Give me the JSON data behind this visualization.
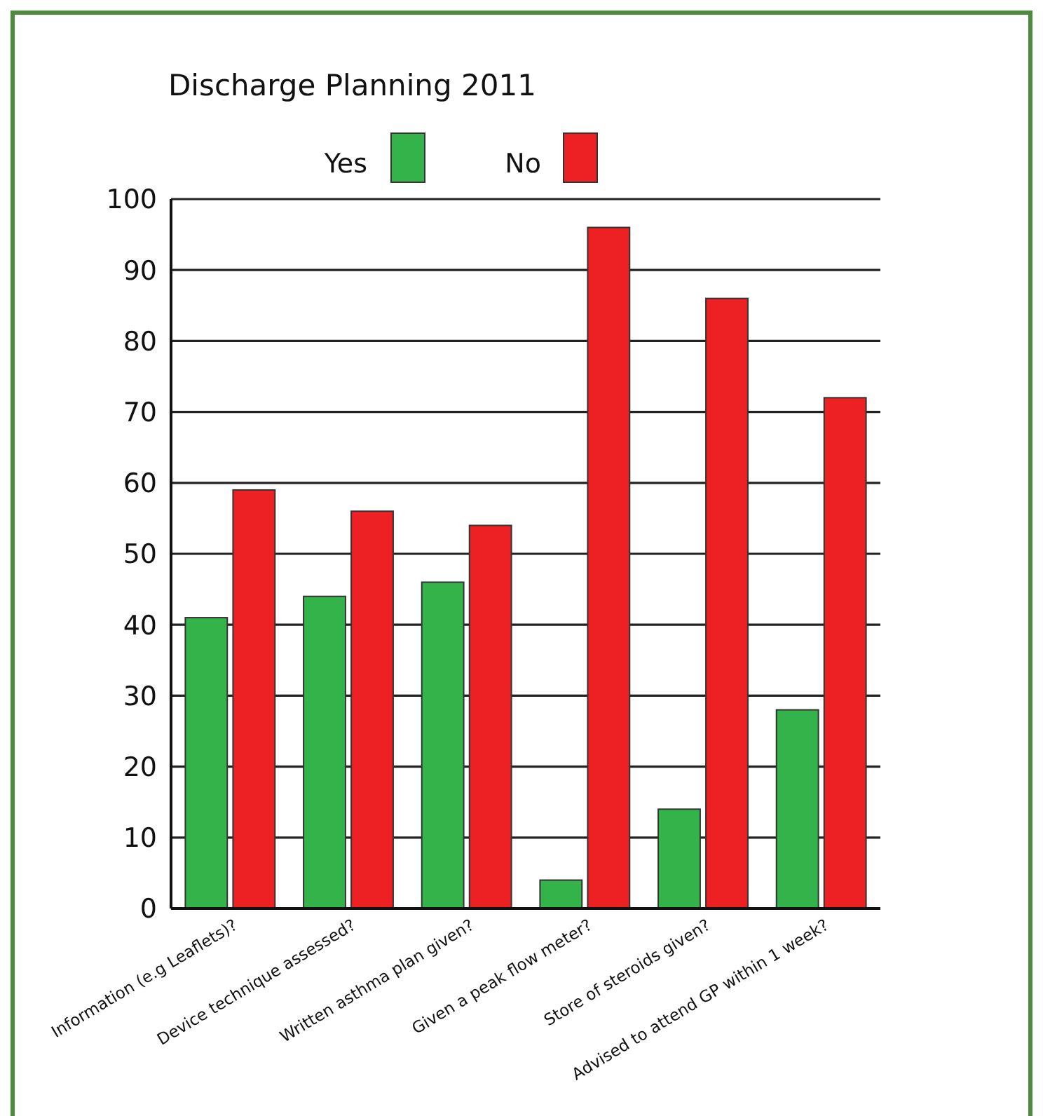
{
  "chart_data": {
    "type": "bar",
    "title": "Discharge Planning 2011",
    "categories": [
      "Information (e.g Leaflets)?",
      "Device technique assessed?",
      "Written asthma plan given?",
      "Given a peak flow meter?",
      "Store of steroids given?",
      "Advised to attend GP within 1 week?"
    ],
    "series": [
      {
        "name": "Yes",
        "color": "#33b34a",
        "values": [
          41,
          44,
          46,
          4,
          14,
          28
        ]
      },
      {
        "name": "No",
        "color": "#ed2024",
        "values": [
          59,
          56,
          54,
          96,
          86,
          72
        ]
      }
    ],
    "ylim": [
      0,
      100
    ],
    "yticks": [
      0,
      10,
      20,
      30,
      40,
      50,
      60,
      70,
      80,
      90,
      100
    ],
    "grid": "y",
    "legend": "top"
  }
}
